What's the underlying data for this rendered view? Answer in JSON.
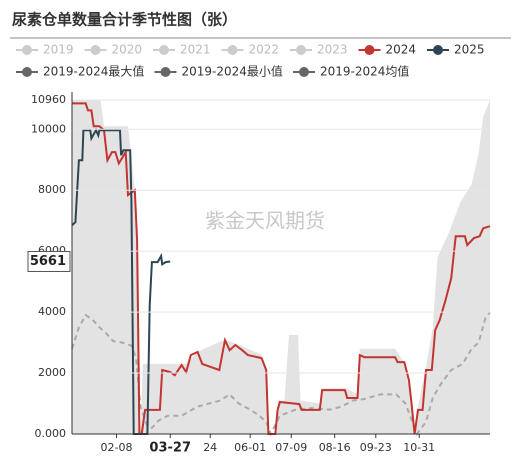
{
  "chart_data": {
    "type": "line",
    "title": "尿素仓单数量合计季节性图（张）",
    "watermark": "紫金天风期货",
    "xlim": [
      0,
      366
    ],
    "ylim": [
      0,
      10960
    ],
    "yticks": [
      {
        "value": 0,
        "label": "0.000"
      },
      2000,
      4000,
      6000,
      8000,
      10000,
      10960
    ],
    "xticks": [
      {
        "value": 39,
        "label": "02-08"
      },
      {
        "value": 121,
        "label": "24"
      },
      {
        "value": 156,
        "label": "06-01"
      },
      {
        "value": 192,
        "label": "07-09"
      },
      {
        "value": 230,
        "label": "08-16"
      },
      {
        "value": 266,
        "label": "09-23"
      },
      {
        "value": 304,
        "label": "10-31"
      }
    ],
    "crosshair": {
      "x": {
        "value": 86,
        "label": "03-27"
      },
      "y": 5661
    },
    "grid": true,
    "series": [
      {
        "name": "2019",
        "color": "#cccccc",
        "style": "hidden",
        "x": [],
        "values": []
      },
      {
        "name": "2020",
        "color": "#cccccc",
        "style": "hidden",
        "x": [],
        "values": []
      },
      {
        "name": "2021",
        "color": "#cccccc",
        "style": "hidden",
        "x": [],
        "values": []
      },
      {
        "name": "2022",
        "color": "#cccccc",
        "style": "hidden",
        "x": [],
        "values": []
      },
      {
        "name": "2023",
        "color": "#cccccc",
        "style": "hidden",
        "x": [],
        "values": []
      },
      {
        "name": "2024",
        "color": "#c23531",
        "style": "line",
        "x": [
          0,
          12,
          14,
          17,
          19,
          24,
          28,
          31,
          35,
          38,
          41,
          47,
          49,
          55,
          57,
          59,
          61,
          64,
          77,
          79,
          86,
          90,
          96,
          100,
          104,
          110,
          114,
          129,
          134,
          138,
          143,
          149,
          154,
          166,
          170,
          172,
          178,
          180,
          182,
          199,
          201,
          217,
          219,
          239,
          241,
          250,
          252,
          256,
          283,
          285,
          291,
          295,
          297,
          300,
          303,
          307,
          310,
          315,
          318,
          322,
          327,
          332,
          336,
          344,
          346,
          352,
          357,
          360,
          366
        ],
        "values": [
          10850,
          10850,
          10620,
          10620,
          10100,
          10100,
          9970,
          8980,
          9250,
          9250,
          8880,
          9250,
          7840,
          8000,
          6360,
          0,
          0,
          790,
          790,
          2100,
          2030,
          1930,
          2260,
          2030,
          2590,
          2690,
          2300,
          2100,
          3080,
          2750,
          2920,
          2750,
          2590,
          2490,
          2100,
          0,
          0,
          790,
          1050,
          980,
          790,
          790,
          1440,
          1440,
          1180,
          1180,
          2590,
          2520,
          2520,
          2360,
          2360,
          1770,
          1110,
          0,
          790,
          790,
          2100,
          2100,
          3410,
          3740,
          4390,
          5110,
          6490,
          6490,
          6200,
          6430,
          6490,
          6750,
          6820
        ]
      },
      {
        "name": "2025",
        "color": "#2f4554",
        "style": "line",
        "x": [
          0,
          3,
          6,
          9,
          10,
          16,
          17,
          21,
          23,
          24,
          42,
          43,
          45,
          51,
          52,
          54,
          66,
          68,
          70,
          75,
          78,
          79,
          82,
          86
        ],
        "values": [
          6850,
          6950,
          8980,
          8980,
          9970,
          9970,
          9700,
          9970,
          9800,
          9970,
          9970,
          9150,
          9310,
          9310,
          7670,
          0,
          0,
          4230,
          5640,
          5640,
          5840,
          5570,
          5640,
          5661
        ]
      },
      {
        "name": "2019-2024最大值",
        "color": "#666666",
        "style": "band",
        "fill": "#e3e3e3",
        "x": [
          0,
          25,
          28,
          49,
          55,
          58,
          60,
          62,
          100,
          110,
          134,
          145,
          166,
          170,
          172,
          178,
          180,
          186,
          190,
          198,
          200,
          217,
          219,
          240,
          250,
          252,
          283,
          290,
          297,
          300,
          303,
          310,
          316,
          320,
          330,
          340,
          350,
          356,
          360,
          366
        ],
        "values": [
          10960,
          10960,
          10100,
          10100,
          8000,
          6000,
          0,
          2300,
          2300,
          2700,
          3100,
          2950,
          2600,
          2100,
          0,
          0,
          1100,
          1100,
          3250,
          3250,
          1100,
          1000,
          1500,
          1500,
          1300,
          2800,
          2800,
          2400,
          1200,
          0,
          900,
          2200,
          3500,
          5800,
          6600,
          7600,
          8200,
          9200,
          10400,
          10960
        ]
      },
      {
        "name": "2019-2024最小值",
        "color": "#666666",
        "style": "floor",
        "x": [
          0,
          366
        ],
        "values": [
          0,
          0
        ]
      },
      {
        "name": "2019-2024均值",
        "color": "#666666",
        "style": "dashed",
        "stroke": "#aaaaaa",
        "x": [
          0,
          6,
          12,
          18,
          24,
          30,
          36,
          44,
          52,
          56,
          60,
          66,
          70,
          76,
          84,
          96,
          110,
          120,
          130,
          138,
          146,
          156,
          164,
          170,
          174,
          182,
          196,
          210,
          226,
          236,
          246,
          256,
          270,
          284,
          292,
          298,
          302,
          310,
          316,
          324,
          332,
          342,
          350,
          356,
          362,
          366
        ],
        "values": [
          2800,
          3500,
          3900,
          3750,
          3500,
          3300,
          3050,
          3000,
          2900,
          2500,
          900,
          250,
          200,
          450,
          600,
          600,
          900,
          1000,
          1100,
          1300,
          1000,
          800,
          600,
          400,
          0,
          600,
          800,
          850,
          800,
          900,
          1100,
          1150,
          1300,
          1300,
          1000,
          400,
          0,
          400,
          1200,
          1700,
          2100,
          2300,
          2800,
          3000,
          3800,
          4000
        ]
      }
    ]
  }
}
